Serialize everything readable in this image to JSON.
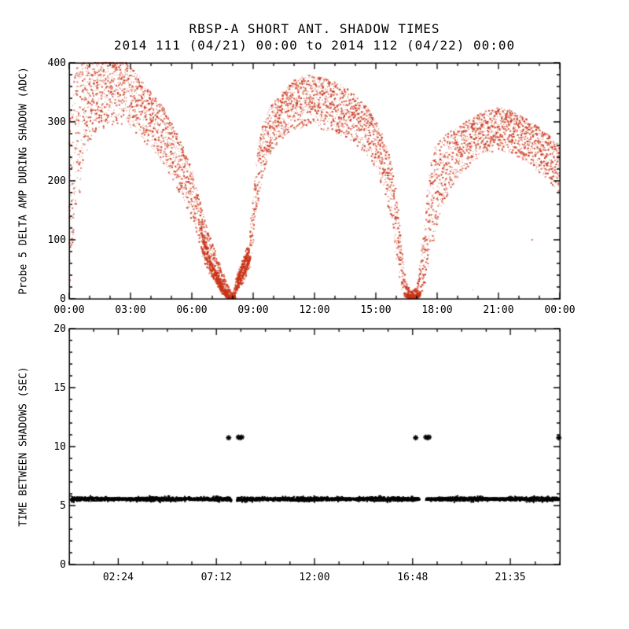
{
  "title": "RBSP-A SHORT ANT. SHADOW TIMES",
  "subtitle": "2014 111 (04/21) 00:00 to 2014 112 (04/22) 00:00",
  "colors": {
    "scatter_red": "#c93418",
    "marker_black": "#000000",
    "axis": "#000000",
    "background": "#ffffff"
  },
  "chart_data": [
    {
      "type": "scatter",
      "name": "probe5-delta-amp-during-shadow",
      "title": "RBSP-A SHORT ANT. SHADOW TIMES",
      "subtitle": "2014 111 (04/21) 00:00 to 2014 112 (04/22) 00:00",
      "ylabel": "Probe 5 DELTA AMP DURING SHADOW (ADC)",
      "xlabel": "",
      "x_unit": "hours",
      "xlim": [
        0,
        24
      ],
      "ylim": [
        0,
        400
      ],
      "marker": "dot",
      "marker_color": "#c93418",
      "grid": false,
      "xticks": [
        {
          "t": 0,
          "label": "00:00"
        },
        {
          "t": 3,
          "label": "03:00"
        },
        {
          "t": 6,
          "label": "06:00"
        },
        {
          "t": 9,
          "label": "09:00"
        },
        {
          "t": 12,
          "label": "12:00"
        },
        {
          "t": 15,
          "label": "15:00"
        },
        {
          "t": 18,
          "label": "18:00"
        },
        {
          "t": 21,
          "label": "21:00"
        },
        {
          "t": 24,
          "label": "00:00"
        }
      ],
      "x_minor": 1,
      "yticks": [
        {
          "v": 0,
          "label": "0"
        },
        {
          "v": 100,
          "label": "100"
        },
        {
          "v": 200,
          "label": "200"
        },
        {
          "v": 300,
          "label": "300"
        },
        {
          "v": 400,
          "label": "400"
        }
      ],
      "y_minor": 20,
      "step_hours": 0.012,
      "points_per_step": 3,
      "envelope": [
        [
          0,
          10,
          300
        ],
        [
          0.3,
          120,
          390
        ],
        [
          0.7,
          230,
          400
        ],
        [
          1.2,
          280,
          405
        ],
        [
          2.0,
          295,
          410
        ],
        [
          2.8,
          295,
          400
        ],
        [
          3.3,
          280,
          385
        ],
        [
          4.0,
          255,
          350
        ],
        [
          4.7,
          225,
          320
        ],
        [
          5.3,
          185,
          280
        ],
        [
          5.8,
          150,
          240
        ],
        [
          6.2,
          110,
          195
        ],
        [
          6.6,
          60,
          140
        ],
        [
          7.0,
          30,
          95
        ],
        [
          7.4,
          12,
          55
        ],
        [
          7.8,
          2,
          20
        ],
        [
          8.0,
          0,
          8
        ],
        [
          8.15,
          8,
          35
        ],
        [
          8.5,
          25,
          70
        ],
        [
          8.8,
          45,
          95
        ],
        [
          8.95,
          80,
          160
        ],
        [
          9.2,
          150,
          250
        ],
        [
          9.5,
          210,
          300
        ],
        [
          9.9,
          250,
          330
        ],
        [
          10.4,
          270,
          350
        ],
        [
          11.0,
          285,
          370
        ],
        [
          11.6,
          290,
          380
        ],
        [
          12.2,
          288,
          378
        ],
        [
          12.8,
          283,
          372
        ],
        [
          13.4,
          275,
          362
        ],
        [
          14.0,
          262,
          345
        ],
        [
          14.6,
          242,
          325
        ],
        [
          15.1,
          210,
          295
        ],
        [
          15.5,
          170,
          262
        ],
        [
          15.8,
          115,
          225
        ],
        [
          16.05,
          45,
          170
        ],
        [
          16.25,
          10,
          90
        ],
        [
          16.45,
          0,
          35
        ],
        [
          16.7,
          0,
          12
        ],
        [
          17.0,
          0,
          18
        ],
        [
          17.2,
          5,
          70
        ],
        [
          17.45,
          25,
          160
        ],
        [
          17.7,
          60,
          240
        ],
        [
          17.95,
          110,
          262
        ],
        [
          18.3,
          160,
          275
        ],
        [
          18.8,
          195,
          288
        ],
        [
          19.4,
          220,
          300
        ],
        [
          20.0,
          238,
          312
        ],
        [
          20.6,
          248,
          322
        ],
        [
          21.2,
          250,
          325
        ],
        [
          21.8,
          242,
          316
        ],
        [
          22.4,
          230,
          304
        ],
        [
          23.0,
          214,
          290
        ],
        [
          23.5,
          198,
          276
        ],
        [
          24,
          178,
          260
        ]
      ],
      "ridges": [
        {
          "n": 320,
          "jx": 0.05,
          "jy": 5,
          "pts": [
            [
              6.4,
              120
            ],
            [
              6.9,
              62
            ],
            [
              7.35,
              28
            ],
            [
              7.8,
              4
            ]
          ]
        },
        {
          "n": 260,
          "jx": 0.05,
          "jy": 4,
          "pts": [
            [
              6.5,
              85
            ],
            [
              7.0,
              42
            ],
            [
              7.5,
              12
            ],
            [
              7.85,
              1
            ]
          ]
        },
        {
          "n": 200,
          "jx": 0.04,
          "jy": 4,
          "pts": [
            [
              8.1,
              12
            ],
            [
              8.4,
              32
            ],
            [
              8.7,
              55
            ],
            [
              8.85,
              70
            ]
          ]
        },
        {
          "n": 180,
          "jx": 0.04,
          "jy": 4,
          "pts": [
            [
              8.2,
              30
            ],
            [
              8.5,
              55
            ],
            [
              8.8,
              82
            ]
          ]
        },
        {
          "n": 260,
          "jx": 0.05,
          "jy": 2.5,
          "pts": [
            [
              7.75,
              3
            ],
            [
              8.0,
              1
            ],
            [
              8.1,
              4
            ]
          ]
        },
        {
          "n": 300,
          "jx": 0.06,
          "jy": 3,
          "pts": [
            [
              16.45,
              6
            ],
            [
              16.7,
              2
            ],
            [
              17.0,
              3
            ],
            [
              17.15,
              8
            ]
          ]
        }
      ],
      "extra_points": [
        [
          22.65,
          100
        ],
        [
          19.75,
          15
        ]
      ]
    },
    {
      "type": "scatter",
      "name": "time-between-shadows",
      "ylabel": "TIME BETWEEN SHADOWS (SEC)",
      "xlabel": "",
      "x_unit": "hours",
      "xlim": [
        0,
        24
      ],
      "ylim": [
        0,
        20
      ],
      "marker": "asterisk",
      "marker_color": "#000000",
      "grid": false,
      "xticks": [
        {
          "t": 2.4,
          "label": "02:24"
        },
        {
          "t": 7.2,
          "label": "07:12"
        },
        {
          "t": 12,
          "label": "12:00"
        },
        {
          "t": 16.8,
          "label": "16:48"
        },
        {
          "t": 21.58,
          "label": "21:35"
        }
      ],
      "x_minor": 1.2,
      "yticks": [
        {
          "v": 0,
          "label": "0"
        },
        {
          "v": 5,
          "label": "5"
        },
        {
          "v": 10,
          "label": "10"
        },
        {
          "v": 15,
          "label": "15"
        },
        {
          "v": 20,
          "label": "20"
        }
      ],
      "y_minor": 1,
      "band": {
        "y": 5.55,
        "half_width": 0.12,
        "segments": [
          [
            0.08,
            7.95
          ],
          [
            8.2,
            17.15
          ],
          [
            17.45,
            23.97
          ]
        ]
      },
      "outliers": [
        [
          7.8,
          10.75
        ],
        [
          8.28,
          10.8
        ],
        [
          8.36,
          10.75
        ],
        [
          8.44,
          10.8
        ],
        [
          16.95,
          10.75
        ],
        [
          17.45,
          10.8
        ],
        [
          17.53,
          10.75
        ],
        [
          17.6,
          10.8
        ],
        [
          23.95,
          10.75
        ]
      ]
    }
  ]
}
